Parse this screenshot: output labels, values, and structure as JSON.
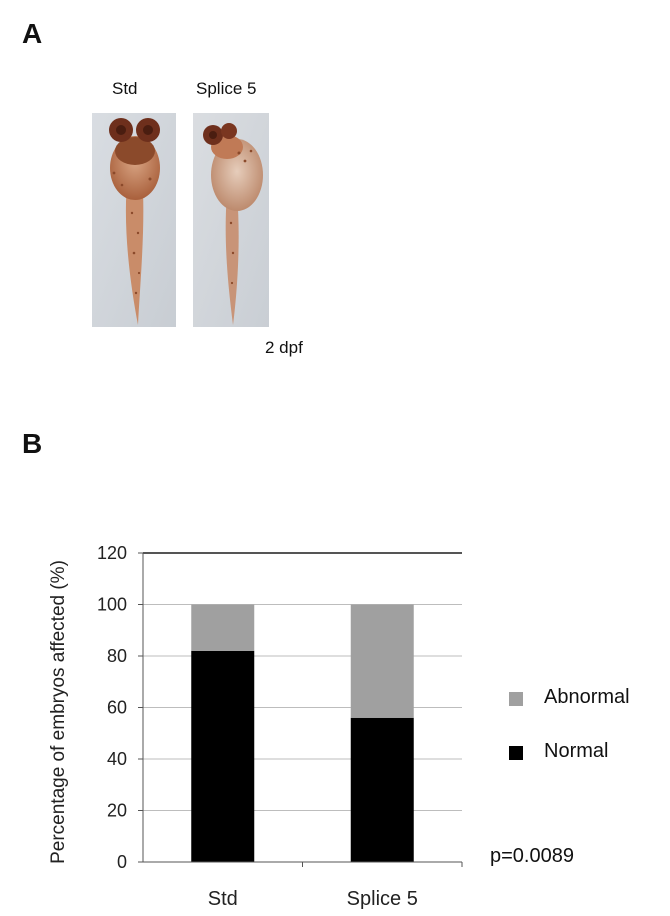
{
  "panel_a": {
    "label": "A",
    "columns": [
      "Std",
      "Splice 5"
    ],
    "stage": "2 dpf"
  },
  "panel_b": {
    "label": "B",
    "p_value": "p=0.0089"
  },
  "colors": {
    "abnormal": "#a0a0a0",
    "normal": "#000000",
    "embryo_stain": "#8b4a2b"
  },
  "chart_data": {
    "type": "bar",
    "stacked": true,
    "categories": [
      "Std",
      "Splice 5"
    ],
    "series": [
      {
        "name": "Normal",
        "values": [
          82,
          56
        ]
      },
      {
        "name": "Abnormal",
        "values": [
          18,
          44
        ]
      }
    ],
    "ylabel": "Percentage of embryos affected (%)",
    "xlabel": "",
    "ylim": [
      0,
      120
    ],
    "yticks": [
      0,
      20,
      40,
      60,
      80,
      100,
      120
    ],
    "grid": true,
    "legend": "right"
  }
}
